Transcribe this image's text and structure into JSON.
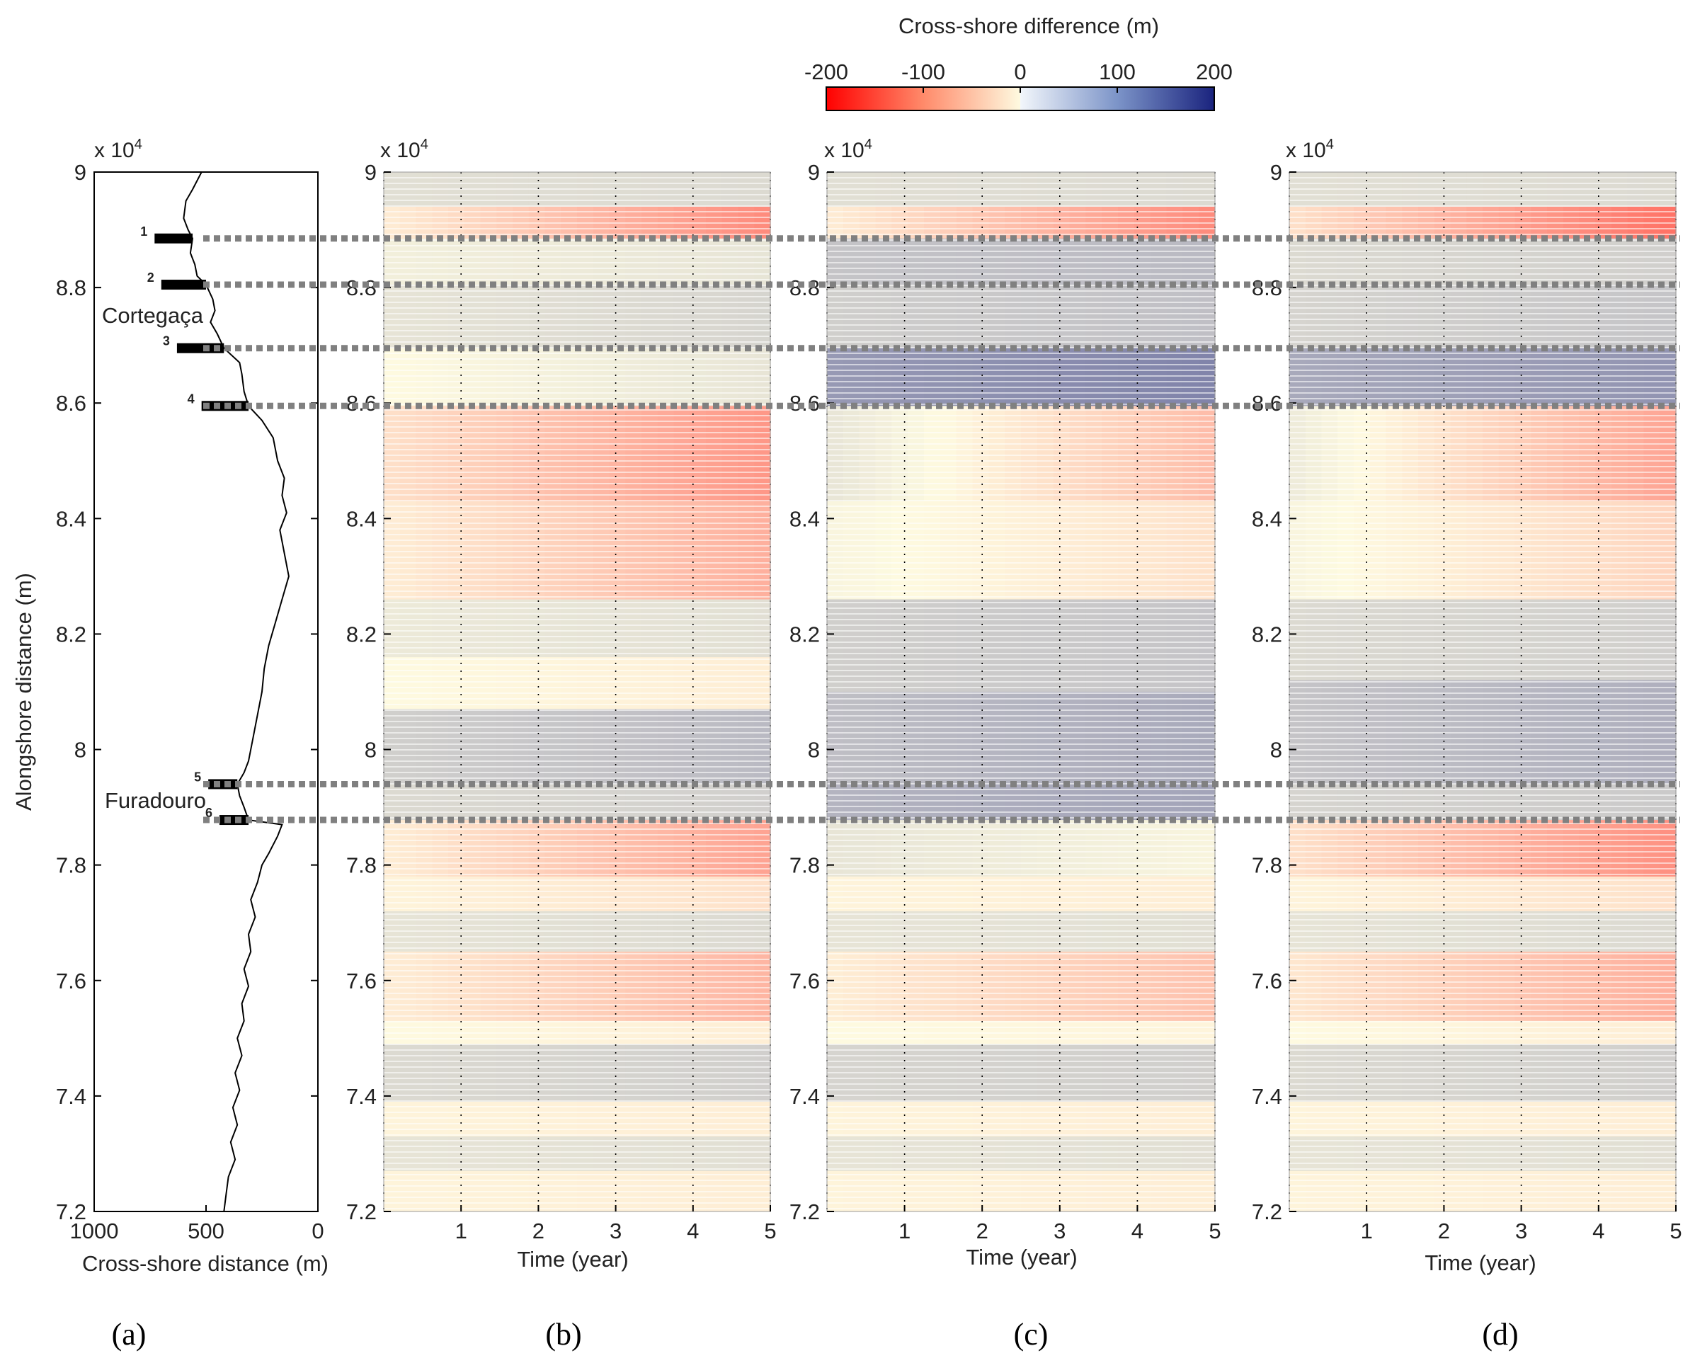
{
  "colors": {
    "red": "#ff0000",
    "white": "#fefae0",
    "blue": "#1a237e",
    "dashed": "#808080",
    "axis": "#000000"
  },
  "panel_labels": {
    "a": "(a)",
    "b": "(b)",
    "c": "(c)",
    "d": "(d)"
  },
  "chart_data": [
    {
      "id": "colorbar",
      "type": "heatmap",
      "title": "Cross-shore difference (m)",
      "range": [
        -200,
        200
      ],
      "ticks": [
        -200,
        -100,
        0,
        100,
        200
      ],
      "tick_labels": [
        "-200",
        "-100",
        "0",
        "100",
        "200"
      ]
    },
    {
      "id": "a",
      "type": "line",
      "xlabel": "Cross-shore distance (m)",
      "ylabel": "Alongshore distance (m)",
      "xlim": [
        1000,
        0
      ],
      "ylim": [
        72000,
        90000
      ],
      "xticks": [
        1000,
        500,
        0
      ],
      "xtick_labels": [
        "1000",
        "500",
        "0"
      ],
      "yticks": [
        72000,
        74000,
        76000,
        78000,
        80000,
        82000,
        84000,
        86000,
        88000,
        90000
      ],
      "ytick_labels": [
        "7.2",
        "7.4",
        "7.6",
        "7.8",
        "8",
        "8.2",
        "8.4",
        "8.6",
        "8.8",
        "9"
      ],
      "y_exponent": "x 10",
      "y_exponent_power": "4",
      "places": [
        {
          "name": "Cortegaça",
          "y": 87500
        },
        {
          "name": "Furadouro",
          "y": 79300
        }
      ],
      "structures": [
        {
          "label": "1",
          "y": 88850,
          "x_start": 730,
          "x_end": 560
        },
        {
          "label": "2",
          "y": 88050,
          "x_start": 700,
          "x_end": 500
        },
        {
          "label": "3",
          "y": 86950,
          "x_start": 630,
          "x_end": 420
        },
        {
          "label": "4",
          "y": 85950,
          "x_start": 520,
          "x_end": 310
        },
        {
          "label": "5",
          "y": 79400,
          "x_start": 490,
          "x_end": 360
        },
        {
          "label": "6",
          "y": 78780,
          "x_start": 440,
          "x_end": 310
        }
      ],
      "shoreline": {
        "y": [
          90000,
          89700,
          89500,
          89200,
          89000,
          88850,
          88600,
          88400,
          88200,
          88050,
          87800,
          87600,
          87400,
          87200,
          86950,
          86700,
          86500,
          86200,
          85950,
          85700,
          85400,
          85000,
          84700,
          84400,
          84100,
          83800,
          83400,
          83000,
          82600,
          82200,
          81800,
          81400,
          81000,
          80600,
          80200,
          79800,
          79600,
          79400,
          79200,
          79000,
          78780,
          78700,
          78500,
          78200,
          78000,
          77700,
          77400,
          77100,
          76800,
          76500,
          76200,
          75900,
          75600,
          75300,
          75000,
          74700,
          74400,
          74100,
          73800,
          73500,
          73200,
          72900,
          72600,
          72300,
          72000
        ],
        "x": [
          520,
          560,
          590,
          600,
          580,
          560,
          570,
          550,
          540,
          500,
          470,
          460,
          480,
          450,
          420,
          350,
          340,
          330,
          310,
          250,
          200,
          180,
          150,
          160,
          140,
          170,
          150,
          130,
          160,
          190,
          220,
          240,
          250,
          270,
          290,
          310,
          330,
          360,
          350,
          330,
          310,
          160,
          180,
          220,
          250,
          270,
          300,
          280,
          310,
          300,
          330,
          310,
          340,
          330,
          360,
          340,
          370,
          350,
          380,
          360,
          390,
          370,
          400,
          410,
          420
        ]
      }
    },
    {
      "id": "b",
      "type": "heatmap",
      "xlabel": "Time (year)",
      "xlim": [
        0,
        5
      ],
      "ylim": [
        72000,
        90000
      ],
      "xticks": [
        1,
        2,
        3,
        4,
        5
      ],
      "xtick_labels": [
        "1",
        "2",
        "3",
        "4",
        "5"
      ],
      "yticks": [
        72000,
        74000,
        76000,
        78000,
        80000,
        82000,
        84000,
        86000,
        88000,
        90000
      ],
      "ytick_labels": [
        "7.2",
        "7.4",
        "7.6",
        "7.8",
        "8",
        "8.2",
        "8.4",
        "8.6",
        "8.8",
        "9"
      ],
      "y_exponent": "x 10",
      "y_exponent_power": "4",
      "bands": [
        {
          "y0": 89400,
          "y1": 90000,
          "v0": 25,
          "v1": 30
        },
        {
          "y0": 88850,
          "y1": 89400,
          "v0": -10,
          "v1": -90
        },
        {
          "y0": 88050,
          "y1": 88850,
          "v0": 10,
          "v1": 20
        },
        {
          "y0": 86950,
          "y1": 88050,
          "v0": 20,
          "v1": 35
        },
        {
          "y0": 85950,
          "y1": 86950,
          "v0": 0,
          "v1": 20
        },
        {
          "y0": 84300,
          "y1": 85950,
          "v0": -20,
          "v1": -80
        },
        {
          "y0": 82600,
          "y1": 84300,
          "v0": -10,
          "v1": -60
        },
        {
          "y0": 81600,
          "y1": 82600,
          "v0": 15,
          "v1": 25
        },
        {
          "y0": 80700,
          "y1": 81600,
          "v0": 0,
          "v1": -10
        },
        {
          "y0": 79400,
          "y1": 80700,
          "v0": 40,
          "v1": 60
        },
        {
          "y0": 78780,
          "y1": 79400,
          "v0": 30,
          "v1": 40
        },
        {
          "y0": 77800,
          "y1": 78780,
          "v0": -10,
          "v1": -70
        },
        {
          "y0": 77200,
          "y1": 77800,
          "v0": -5,
          "v1": -20
        },
        {
          "y0": 76500,
          "y1": 77200,
          "v0": 20,
          "v1": 30
        },
        {
          "y0": 75300,
          "y1": 76500,
          "v0": -10,
          "v1": -55
        },
        {
          "y0": 74900,
          "y1": 75300,
          "v0": 0,
          "v1": -10
        },
        {
          "y0": 73900,
          "y1": 74900,
          "v0": 30,
          "v1": 40
        },
        {
          "y0": 73300,
          "y1": 73900,
          "v0": -5,
          "v1": -10
        },
        {
          "y0": 72700,
          "y1": 73300,
          "v0": 20,
          "v1": 25
        },
        {
          "y0": 72000,
          "y1": 72700,
          "v0": -5,
          "v1": -10
        }
      ]
    },
    {
      "id": "c",
      "type": "heatmap",
      "xlabel": "Time (year)",
      "xlim": [
        0,
        5
      ],
      "ylim": [
        72000,
        90000
      ],
      "xticks": [
        1,
        2,
        3,
        4,
        5
      ],
      "xtick_labels": [
        "1",
        "2",
        "3",
        "4",
        "5"
      ],
      "yticks": [
        72000,
        74000,
        76000,
        78000,
        80000,
        82000,
        84000,
        86000,
        88000,
        90000
      ],
      "ytick_labels": [
        "7.2",
        "7.4",
        "7.6",
        "7.8",
        "8",
        "8.2",
        "8.4",
        "8.6",
        "8.8",
        "9"
      ],
      "y_exponent": "x 10",
      "y_exponent_power": "4",
      "bands": [
        {
          "y0": 89400,
          "y1": 90000,
          "v0": 25,
          "v1": 30
        },
        {
          "y0": 88850,
          "y1": 89400,
          "v0": -10,
          "v1": -90
        },
        {
          "y0": 88050,
          "y1": 88850,
          "v0": 50,
          "v1": 60
        },
        {
          "y0": 86950,
          "y1": 88050,
          "v0": 40,
          "v1": 55
        },
        {
          "y0": 85950,
          "y1": 86950,
          "v0": 90,
          "v1": 110
        },
        {
          "y0": 84300,
          "y1": 85950,
          "v0": 20,
          "v1": -50
        },
        {
          "y0": 82600,
          "y1": 84300,
          "v0": 5,
          "v1": -20
        },
        {
          "y0": 81000,
          "y1": 82600,
          "v0": 40,
          "v1": 50
        },
        {
          "y0": 79400,
          "y1": 81000,
          "v0": 55,
          "v1": 75
        },
        {
          "y0": 78780,
          "y1": 79400,
          "v0": 65,
          "v1": 80
        },
        {
          "y0": 77800,
          "y1": 78780,
          "v0": 20,
          "v1": 5
        },
        {
          "y0": 77200,
          "y1": 77800,
          "v0": -5,
          "v1": -10
        },
        {
          "y0": 76500,
          "y1": 77200,
          "v0": 20,
          "v1": 25
        },
        {
          "y0": 75300,
          "y1": 76500,
          "v0": -10,
          "v1": -45
        },
        {
          "y0": 74900,
          "y1": 75300,
          "v0": 0,
          "v1": -5
        },
        {
          "y0": 73900,
          "y1": 74900,
          "v0": 35,
          "v1": 40
        },
        {
          "y0": 73300,
          "y1": 73900,
          "v0": -5,
          "v1": -10
        },
        {
          "y0": 72700,
          "y1": 73300,
          "v0": 20,
          "v1": 25
        },
        {
          "y0": 72000,
          "y1": 72700,
          "v0": -5,
          "v1": -10
        }
      ]
    },
    {
      "id": "d",
      "type": "heatmap",
      "xlabel": "Time (year)",
      "xlim": [
        0,
        5
      ],
      "ylim": [
        72000,
        90000
      ],
      "xticks": [
        1,
        2,
        3,
        4,
        5
      ],
      "xtick_labels": [
        "1",
        "2",
        "3",
        "4",
        "5"
      ],
      "yticks": [
        72000,
        74000,
        76000,
        78000,
        80000,
        82000,
        84000,
        86000,
        88000,
        90000
      ],
      "ytick_labels": [
        "7.2",
        "7.4",
        "7.6",
        "7.8",
        "8",
        "8.2",
        "8.4",
        "8.6",
        "8.8",
        "9"
      ],
      "y_exponent": "x 10",
      "y_exponent_power": "4",
      "bands": [
        {
          "y0": 89400,
          "y1": 90000,
          "v0": 25,
          "v1": 30
        },
        {
          "y0": 88850,
          "y1": 89400,
          "v0": -20,
          "v1": -110
        },
        {
          "y0": 88050,
          "y1": 88850,
          "v0": 30,
          "v1": 40
        },
        {
          "y0": 86950,
          "y1": 88050,
          "v0": 35,
          "v1": 50
        },
        {
          "y0": 85950,
          "y1": 86950,
          "v0": 75,
          "v1": 95
        },
        {
          "y0": 84300,
          "y1": 85950,
          "v0": 15,
          "v1": -70
        },
        {
          "y0": 82600,
          "y1": 84300,
          "v0": 5,
          "v1": -30
        },
        {
          "y0": 81200,
          "y1": 82600,
          "v0": 30,
          "v1": 40
        },
        {
          "y0": 79400,
          "y1": 81200,
          "v0": 50,
          "v1": 70
        },
        {
          "y0": 78780,
          "y1": 79400,
          "v0": 35,
          "v1": 45
        },
        {
          "y0": 77800,
          "y1": 78780,
          "v0": -20,
          "v1": -85
        },
        {
          "y0": 77200,
          "y1": 77800,
          "v0": -5,
          "v1": -20
        },
        {
          "y0": 76500,
          "y1": 77200,
          "v0": 20,
          "v1": 30
        },
        {
          "y0": 75300,
          "y1": 76500,
          "v0": -15,
          "v1": -60
        },
        {
          "y0": 74900,
          "y1": 75300,
          "v0": 0,
          "v1": -10
        },
        {
          "y0": 73900,
          "y1": 74900,
          "v0": 30,
          "v1": 40
        },
        {
          "y0": 73300,
          "y1": 73900,
          "v0": -5,
          "v1": -10
        },
        {
          "y0": 72700,
          "y1": 73300,
          "v0": 20,
          "v1": 25
        },
        {
          "y0": 72000,
          "y1": 72700,
          "v0": -5,
          "v1": -10
        }
      ]
    }
  ],
  "reference_lines": [
    88850,
    88050,
    86950,
    85950,
    79400,
    78780
  ]
}
